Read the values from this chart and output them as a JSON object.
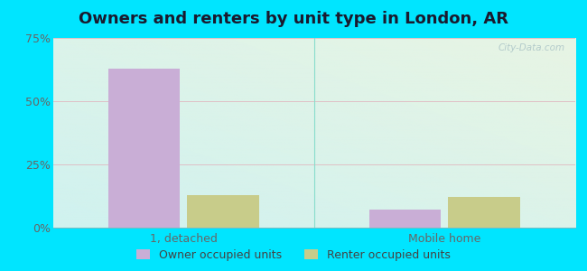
{
  "title": "Owners and renters by unit type in London, AR",
  "categories": [
    "1, detached",
    "Mobile home"
  ],
  "owner_values": [
    63.0,
    7.0
  ],
  "renter_values": [
    13.0,
    12.0
  ],
  "owner_color": "#c9aed6",
  "renter_color": "#c8cc8a",
  "ylim": [
    0,
    75
  ],
  "yticks": [
    0,
    25,
    50,
    75
  ],
  "yticklabels": [
    "0%",
    "25%",
    "50%",
    "75%"
  ],
  "background_outer": "#00e5ff",
  "bar_width": 0.55,
  "title_fontsize": 13,
  "tick_fontsize": 9,
  "legend_fontsize": 9,
  "watermark": "City-Data.com",
  "group_positions": [
    1.0,
    3.0
  ],
  "xlim": [
    0,
    4.0
  ]
}
